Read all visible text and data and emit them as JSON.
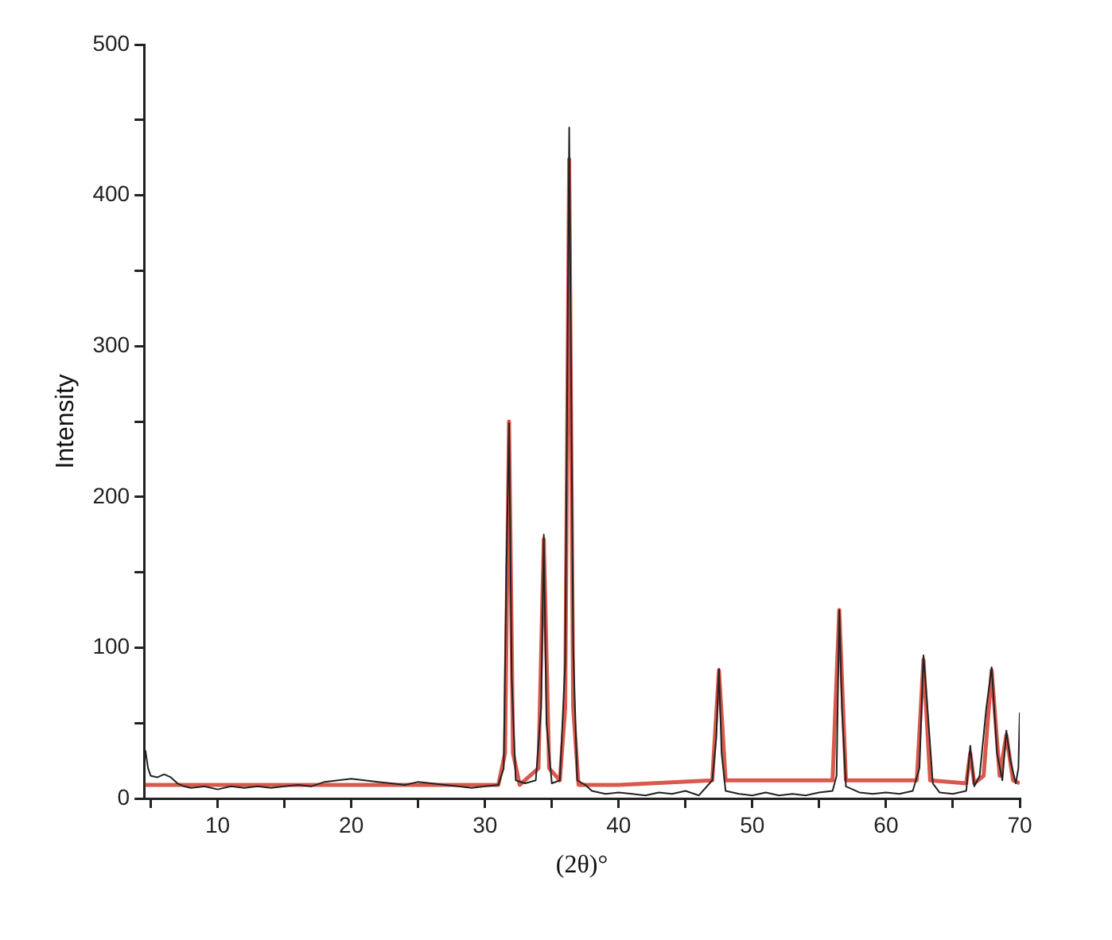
{
  "chart_data": {
    "type": "line",
    "xlabel": "(2θ)°",
    "ylabel": "Intensity",
    "xlim": [
      4.5,
      70
    ],
    "ylim": [
      0,
      500
    ],
    "xticks": [
      {
        "value": 5,
        "label": null
      },
      10,
      {
        "value": 15,
        "label": null
      },
      20,
      {
        "value": 25,
        "label": null
      },
      30,
      {
        "value": 35,
        "label": null
      },
      40,
      {
        "value": 45,
        "label": null
      },
      50,
      {
        "value": 55,
        "label": null
      },
      60,
      {
        "value": 65,
        "label": null
      },
      70
    ],
    "yticks": [
      0,
      {
        "value": 50,
        "label": null
      },
      100,
      {
        "value": 150,
        "label": null
      },
      200,
      {
        "value": 250,
        "label": null
      },
      300,
      {
        "value": 350,
        "label": null
      },
      400,
      {
        "value": 450,
        "label": null
      },
      500
    ],
    "grid": false,
    "legend": false,
    "marker": "none",
    "line_style": "solid",
    "series": [
      {
        "color": "#222222",
        "x": [
          4.6,
          4.8,
          5,
          5.5,
          6,
          6.5,
          7,
          7.5,
          8,
          9,
          10,
          11,
          12,
          13,
          14,
          15,
          16,
          17,
          18,
          19,
          20,
          21,
          22,
          23,
          24,
          25,
          26,
          27,
          28,
          29,
          30,
          31,
          31.4,
          31.6,
          31.8,
          32.0,
          32.3,
          33,
          33.8,
          34.2,
          34.4,
          34.6,
          35,
          35.6,
          36.0,
          36.3,
          36.6,
          36.9,
          37.5,
          38,
          39,
          40,
          41,
          42,
          43,
          44,
          45,
          46,
          47,
          47.3,
          47.5,
          47.7,
          48,
          49,
          50,
          51,
          52,
          53,
          54,
          55,
          56,
          56.3,
          56.5,
          56.7,
          57,
          58,
          59,
          60,
          61,
          62,
          62.5,
          62.8,
          63.1,
          63.5,
          64,
          65,
          66,
          66.3,
          66.6,
          67,
          67.5,
          67.9,
          68.3,
          68.7,
          69.0,
          69.3,
          69.7,
          69.9,
          70
        ],
        "values": [
          32,
          20,
          15,
          14,
          16,
          14,
          10,
          8,
          7,
          8,
          6,
          8,
          7,
          8,
          7,
          8,
          9,
          8,
          11,
          12,
          13,
          12,
          11,
          10,
          9,
          11,
          10,
          9,
          8,
          7,
          8,
          9,
          20,
          150,
          249,
          80,
          12,
          10,
          12,
          60,
          175,
          50,
          10,
          12,
          90,
          445,
          100,
          12,
          9,
          5,
          3,
          4,
          3,
          2,
          4,
          3,
          5,
          2,
          12,
          40,
          86,
          30,
          5,
          3,
          2,
          4,
          2,
          3,
          2,
          4,
          5,
          15,
          125,
          60,
          8,
          4,
          3,
          4,
          3,
          5,
          20,
          95,
          60,
          10,
          4,
          3,
          5,
          35,
          8,
          15,
          60,
          87,
          30,
          12,
          45,
          25,
          10,
          20,
          57
        ]
      },
      {
        "color": "#d9594c",
        "x": [
          4.6,
          31,
          31.5,
          31.8,
          32.1,
          32.6,
          34.0,
          34.4,
          34.8,
          35.6,
          36.0,
          36.3,
          36.6,
          37.0,
          40,
          47.0,
          47.5,
          48.0,
          56.0,
          56.5,
          57.0,
          62.3,
          62.8,
          63.3,
          66.0,
          66.3,
          66.6,
          67.3,
          67.9,
          68.5,
          69.0,
          69.5,
          70
        ],
        "values": [
          9,
          9,
          30,
          250,
          30,
          9,
          20,
          172,
          20,
          12,
          60,
          424,
          60,
          9,
          9,
          12,
          85,
          12,
          12,
          125,
          12,
          12,
          92,
          12,
          10,
          30,
          10,
          15,
          85,
          15,
          42,
          12,
          10
        ]
      }
    ]
  }
}
